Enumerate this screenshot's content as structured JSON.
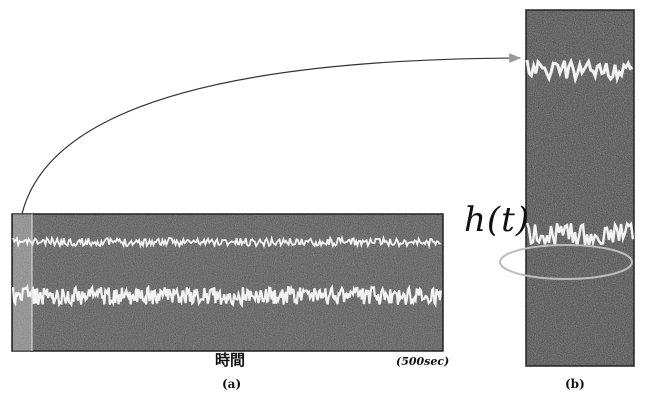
{
  "panels": {
    "a": {
      "caption": "(a)",
      "axis_label": "時間",
      "duration_label": "(500sec)"
    },
    "b": {
      "caption": "(b)",
      "curve_label": "h(t)"
    }
  },
  "colors": {
    "background": "#ffffff",
    "noise_field": "#5a5a5a",
    "signal_trace": "#f2f2f2",
    "arrow": "#333333",
    "highlight_ellipse": "#bdbdbd"
  }
}
